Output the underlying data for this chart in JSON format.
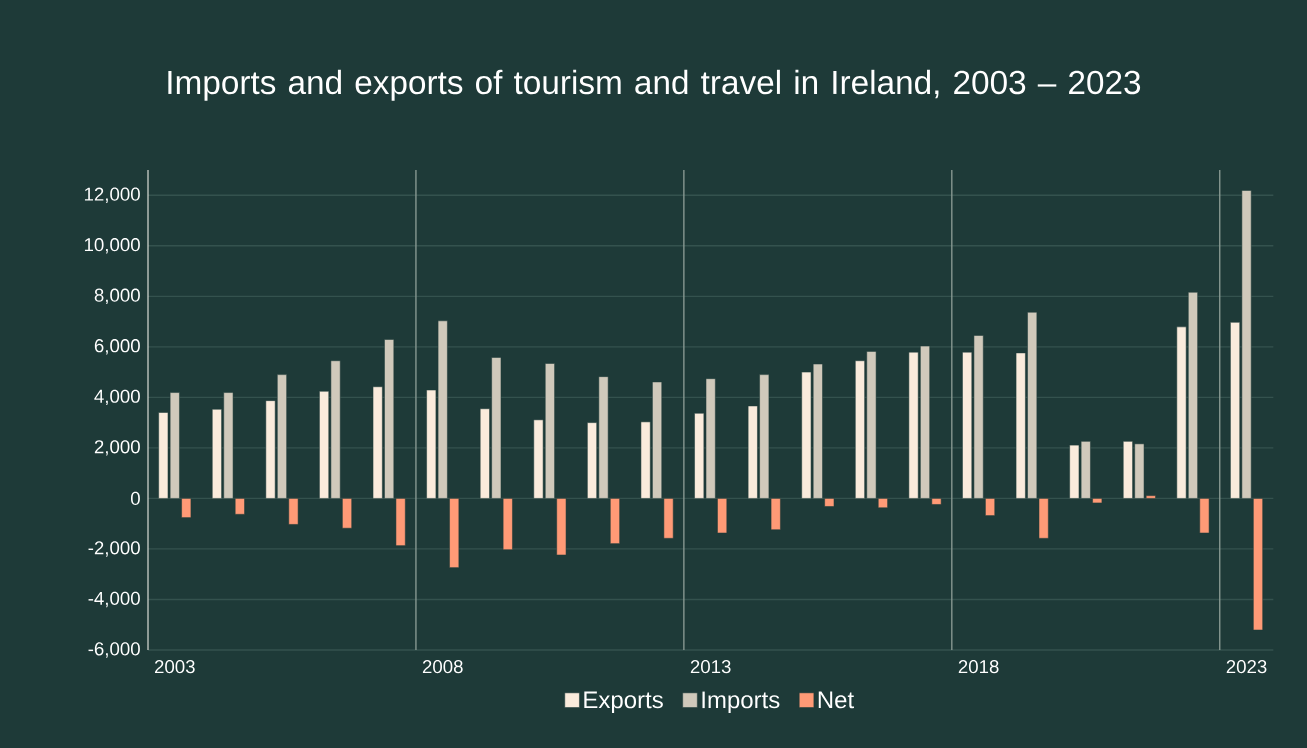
{
  "chart_data": {
    "type": "bar",
    "title": "Imports and exports of tourism and travel in Ireland, 2003 – 2023",
    "x": [
      2003,
      2004,
      2005,
      2006,
      2007,
      2008,
      2009,
      2010,
      2011,
      2012,
      2013,
      2014,
      2015,
      2016,
      2017,
      2018,
      2019,
      2020,
      2021,
      2022,
      2023
    ],
    "series": [
      {
        "name": "Exports",
        "color": "#faebdc",
        "values": [
          3400,
          3530,
          3870,
          4240,
          4420,
          4290,
          3550,
          3110,
          3000,
          3030,
          3370,
          3660,
          5000,
          5450,
          5790,
          5790,
          5760,
          2110,
          2260,
          6790,
          6970
        ]
      },
      {
        "name": "Imports",
        "color": "#d0c9bb",
        "values": [
          4190,
          4190,
          4900,
          5450,
          6290,
          7030,
          5580,
          5340,
          4820,
          4610,
          4740,
          4900,
          5320,
          5820,
          6030,
          6450,
          7370,
          2260,
          2160,
          8160,
          12190
        ]
      },
      {
        "name": "Net",
        "color": "#ff9a76",
        "values": [
          -760,
          -630,
          -1030,
          -1180,
          -1870,
          -2740,
          -2030,
          -2240,
          -1790,
          -1580,
          -1370,
          -1240,
          -320,
          -370,
          -240,
          -680,
          -1580,
          -180,
          110,
          -1370,
          -5210
        ]
      }
    ],
    "xlim": [
      2002.5,
      2023.5
    ],
    "xticks": [
      2003,
      2008,
      2013,
      2018,
      2023
    ],
    "ylim": [
      -6000,
      13000
    ],
    "yticks": [
      {
        "value": -6000,
        "label": "-6,000"
      },
      {
        "value": -4000,
        "label": "-4,000"
      },
      {
        "value": -2000,
        "label": "-2,000"
      },
      {
        "value": 0,
        "label": "0"
      },
      {
        "value": 2000,
        "label": "2,000"
      },
      {
        "value": 4000,
        "label": "4,000"
      },
      {
        "value": 6000,
        "label": "6,000"
      },
      {
        "value": 8000,
        "label": "8,000"
      },
      {
        "value": 10000,
        "label": "10,000"
      },
      {
        "value": 12000,
        "label": "12,000"
      }
    ],
    "ref_lines": [
      {
        "axis": "x",
        "value": 2007.5,
        "color": "#8c9c95"
      },
      {
        "axis": "x",
        "value": 2012.5,
        "color": "#8c9c95"
      },
      {
        "axis": "x",
        "value": 2017.5,
        "color": "#8c9c95"
      },
      {
        "axis": "x",
        "value": 2022.5,
        "color": "#8c9c95"
      }
    ],
    "grid": "y",
    "legend": "bottom"
  }
}
